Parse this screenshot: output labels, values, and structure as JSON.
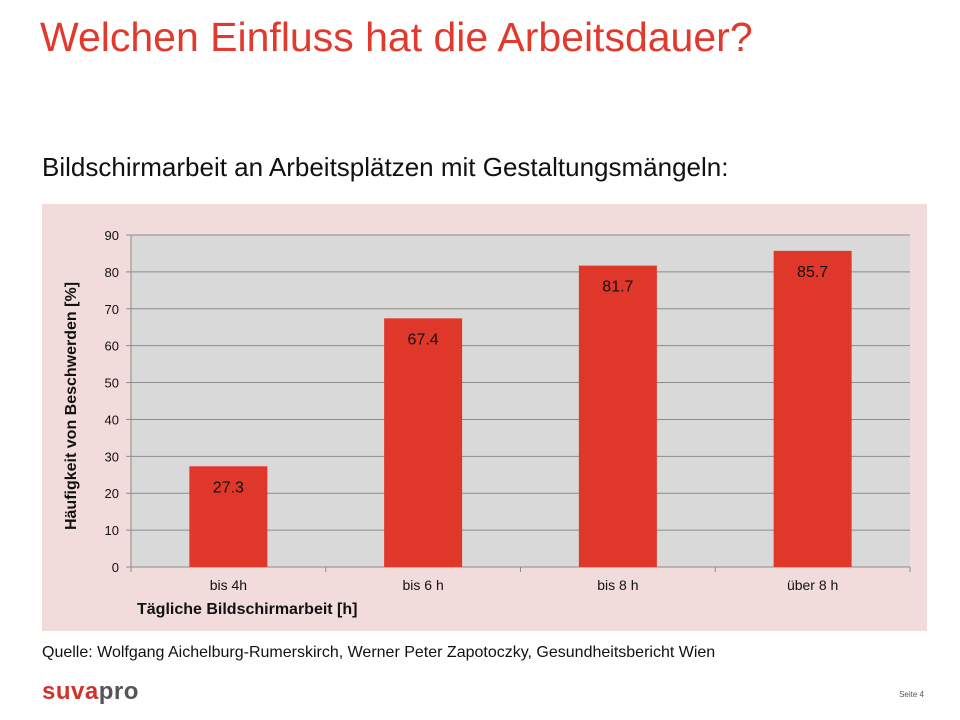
{
  "slide": {
    "title": "Welchen Einfluss hat die Arbeitsdauer?",
    "subtitle": "Bildschirmarbeit an Arbeitsplätzen mit Gestaltungsmängeln:",
    "source": "Quelle: Wolfgang Aichelburg-Rumerskirch, Werner Peter Zapotoczky, Gesundheitsbericht Wien",
    "logo": "suvapro",
    "page_label": "Seite 4"
  },
  "colors": {
    "title": "#e2392d",
    "bar": "#e0372b",
    "plot_background": "#d9d9d9",
    "frame_background": "#f2dbdb"
  },
  "chart_data": {
    "type": "bar",
    "categories": [
      "bis 4h",
      "bis 6 h",
      "bis 8 h",
      "über 8 h"
    ],
    "values": [
      27.3,
      67.4,
      81.7,
      85.7
    ],
    "data_labels": [
      "27.3",
      "67.4",
      "81.7",
      "85.7"
    ],
    "title": "",
    "xlabel": "Tägliche Bildschirmarbeit [h]",
    "ylabel": "Häufigkeit von Beschwerden [%]",
    "ylim": [
      0,
      90
    ],
    "yticks": [
      0,
      10,
      20,
      30,
      40,
      50,
      60,
      70,
      80,
      90
    ],
    "grid": true,
    "legend": "none"
  }
}
